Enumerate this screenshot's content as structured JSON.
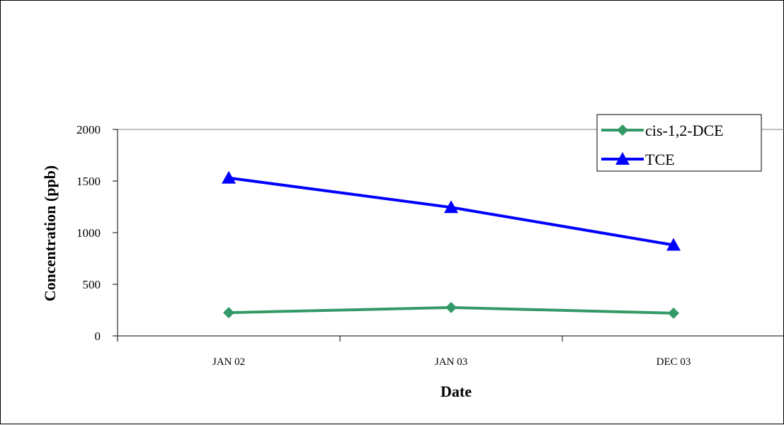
{
  "chart_data": {
    "type": "line",
    "categories": [
      "JAN 02",
      "JAN 03",
      "DEC 03"
    ],
    "series": [
      {
        "name": "cis-1,2-DCE",
        "values": [
          225,
          275,
          220
        ],
        "color": "#339966",
        "marker": "diamond"
      },
      {
        "name": "TCE",
        "values": [
          1530,
          1245,
          880
        ],
        "color": "#0000ff",
        "marker": "triangle"
      }
    ],
    "xlabel": "Date",
    "ylabel": "Concentration (ppb)",
    "ylim": [
      0,
      2000
    ],
    "yticks": [
      0,
      500,
      1000,
      1500,
      2000
    ],
    "grid": false,
    "legend": "top-right"
  }
}
